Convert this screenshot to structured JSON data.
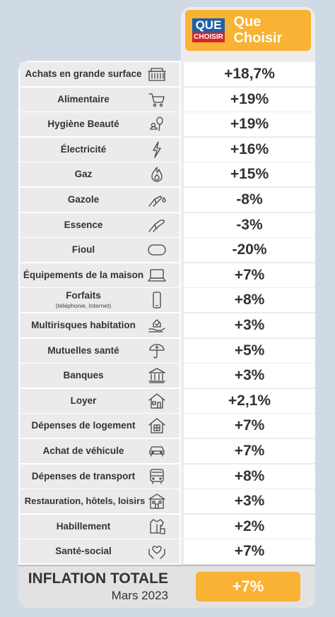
{
  "brand": {
    "logo_top": "QUE",
    "logo_bottom": "CHOISIR",
    "name": "Que Choisir"
  },
  "rows": [
    {
      "label": "Achats en grande surface",
      "value": "+18,7%",
      "icon": "supermarket-icon"
    },
    {
      "label": "Alimentaire",
      "value": "+19%",
      "icon": "shopping-cart-icon"
    },
    {
      "label": "Hygiène Beauté",
      "value": "+19%",
      "icon": "beauty-products-icon"
    },
    {
      "label": "Électricité",
      "value": "+16%",
      "icon": "lightning-icon"
    },
    {
      "label": "Gaz",
      "value": "+15%",
      "icon": "flame-icon"
    },
    {
      "label": "Gazole",
      "value": "-8%",
      "icon": "fuel-nozzle-drop-icon"
    },
    {
      "label": "Essence",
      "value": "-3%",
      "icon": "fuel-nozzle-icon"
    },
    {
      "label": "Fioul",
      "value": "-20%",
      "icon": "oil-tank-icon"
    },
    {
      "label": "Équipements de la maison",
      "value": "+7%",
      "icon": "laptop-icon"
    },
    {
      "label": "Forfaits",
      "sub": "(téléphonie, Internet)",
      "value": "+8%",
      "icon": "smartphone-icon"
    },
    {
      "label": "Multirisques habitation",
      "value": "+3%",
      "icon": "home-insurance-icon"
    },
    {
      "label": "Mutuelles santé",
      "value": "+5%",
      "icon": "health-umbrella-icon"
    },
    {
      "label": "Banques",
      "value": "+3%",
      "icon": "bank-icon"
    },
    {
      "label": "Loyer",
      "value": "+2,1%",
      "icon": "house-icon"
    },
    {
      "label": "Dépenses de logement",
      "value": "+7%",
      "icon": "house-grid-icon"
    },
    {
      "label": "Achat de véhicule",
      "value": "+7%",
      "icon": "car-icon"
    },
    {
      "label": "Dépenses de transport",
      "value": "+8%",
      "icon": "bus-icon"
    },
    {
      "label": "Restauration, hôtels, loisirs",
      "value": "+3%",
      "icon": "hotel-icon"
    },
    {
      "label": "Habillement",
      "value": "+2%",
      "icon": "clothing-icon"
    },
    {
      "label": "Santé-social",
      "value": "+7%",
      "icon": "care-hands-icon"
    }
  ],
  "total": {
    "title": "INFLATION TOTALE",
    "subtitle": "Mars 2023",
    "value": "+7%"
  },
  "colors": {
    "accent": "#f9b233",
    "background": "#cfdae4",
    "logo_blue": "#1f5fa8",
    "logo_red": "#d7232a"
  }
}
